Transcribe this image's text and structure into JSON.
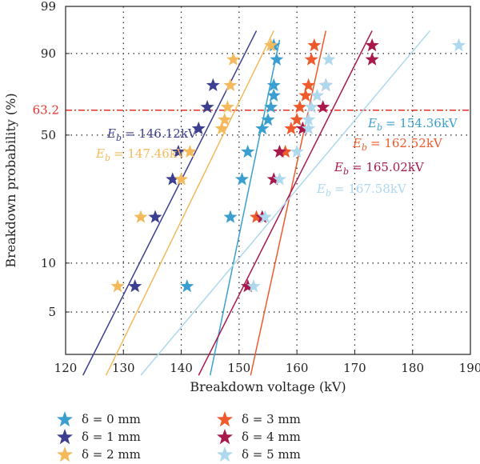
{
  "chart_data": {
    "type": "scatter",
    "xlabel": "Breakdown voltage (kV)",
    "ylabel": "Breakdown probability (%)",
    "xlim": [
      120,
      190
    ],
    "xticks": [
      120,
      130,
      140,
      150,
      160,
      170,
      180,
      190
    ],
    "y_scale": "weibull",
    "yticks": [
      5,
      10,
      50,
      90,
      99
    ],
    "reference_line": {
      "y": 63.2,
      "label": "63.2",
      "color": "#e0312c",
      "style": "dash-dot"
    },
    "grid": true,
    "legend_position": "bottom-left",
    "series": [
      {
        "name": "δ = 0 mm",
        "color": "#3a9fcf",
        "points": [
          [
            141,
            7.2
          ],
          [
            148.5,
            18.7
          ],
          [
            150.5,
            30.3
          ],
          [
            151.5,
            41.8
          ],
          [
            154,
            53.3
          ],
          [
            155,
            58
          ],
          [
            155.5,
            64.8
          ],
          [
            156,
            71
          ],
          [
            156,
            76.3
          ],
          [
            156.5,
            87.8
          ],
          [
            156,
            92.5
          ]
        ],
        "fit": [
          [
            145,
            2
          ],
          [
            157,
            94
          ]
        ],
        "eb_label": "E_b = 154.36kV"
      },
      {
        "name": "δ = 1 mm",
        "color": "#3c3f8f",
        "points": [
          [
            132,
            7.2
          ],
          [
            135.5,
            18.7
          ],
          [
            138.5,
            30.3
          ],
          [
            139.5,
            41.8
          ],
          [
            143,
            53.3
          ],
          [
            144.5,
            64.8
          ],
          [
            145.5,
            76.3
          ]
        ],
        "fit": [
          [
            123,
            2
          ],
          [
            153,
            96
          ]
        ],
        "eb_label": "E_b = 146.12kV"
      },
      {
        "name": "δ = 2 mm",
        "color": "#f4b95a",
        "points": [
          [
            129,
            7.2
          ],
          [
            133,
            18.7
          ],
          [
            140,
            30.3
          ],
          [
            141.5,
            41.8
          ],
          [
            147,
            53.3
          ],
          [
            147.5,
            58
          ],
          [
            148,
            64.8
          ],
          [
            148.5,
            76.3
          ],
          [
            149,
            87.8
          ],
          [
            155.5,
            92.5
          ]
        ],
        "fit": [
          [
            127,
            2
          ],
          [
            156,
            96
          ]
        ],
        "eb_label": "E_b = 147.46kV"
      },
      {
        "name": "δ = 3 mm",
        "color": "#ef5a2c",
        "points": [
          [
            153,
            18.7
          ],
          [
            158,
            41.8
          ],
          [
            159,
            53.3
          ],
          [
            160,
            58
          ],
          [
            160.5,
            64.8
          ],
          [
            161.5,
            71
          ],
          [
            162,
            76.3
          ],
          [
            162.5,
            87.8
          ],
          [
            163,
            92.5
          ]
        ],
        "fit": [
          [
            152,
            2
          ],
          [
            165,
            96
          ]
        ],
        "eb_label": "E_b = 162.52kV"
      },
      {
        "name": "δ = 4 mm",
        "color": "#a8184a",
        "points": [
          [
            151.5,
            7.2
          ],
          [
            154,
            18.7
          ],
          [
            156,
            30.3
          ],
          [
            157,
            41.8
          ],
          [
            161,
            53.3
          ],
          [
            164.5,
            64.8
          ],
          [
            165,
            76.3
          ],
          [
            173,
            87.8
          ],
          [
            173,
            92.5
          ]
        ],
        "fit": [
          [
            143,
            2
          ],
          [
            173,
            96
          ]
        ],
        "eb_label": "E_b = 165.02kV"
      },
      {
        "name": "δ = 5 mm",
        "color": "#add8ee",
        "points": [
          [
            152.5,
            7.2
          ],
          [
            154.5,
            18.7
          ],
          [
            157,
            30.3
          ],
          [
            160,
            41.8
          ],
          [
            162,
            53.3
          ],
          [
            162,
            58
          ],
          [
            162.5,
            64.8
          ],
          [
            163.5,
            71
          ],
          [
            165,
            76.3
          ],
          [
            165.5,
            87.8
          ],
          [
            188,
            92.5
          ]
        ],
        "fit": [
          [
            133,
            2
          ],
          [
            183,
            96
          ]
        ],
        "eb_label": "E_b = 167.58kV"
      }
    ]
  },
  "legend": {
    "entries": [
      "δ = 0 mm",
      "δ = 1 mm",
      "δ = 2 mm",
      "δ = 3 mm",
      "δ = 4 mm",
      "δ = 5 mm"
    ]
  }
}
